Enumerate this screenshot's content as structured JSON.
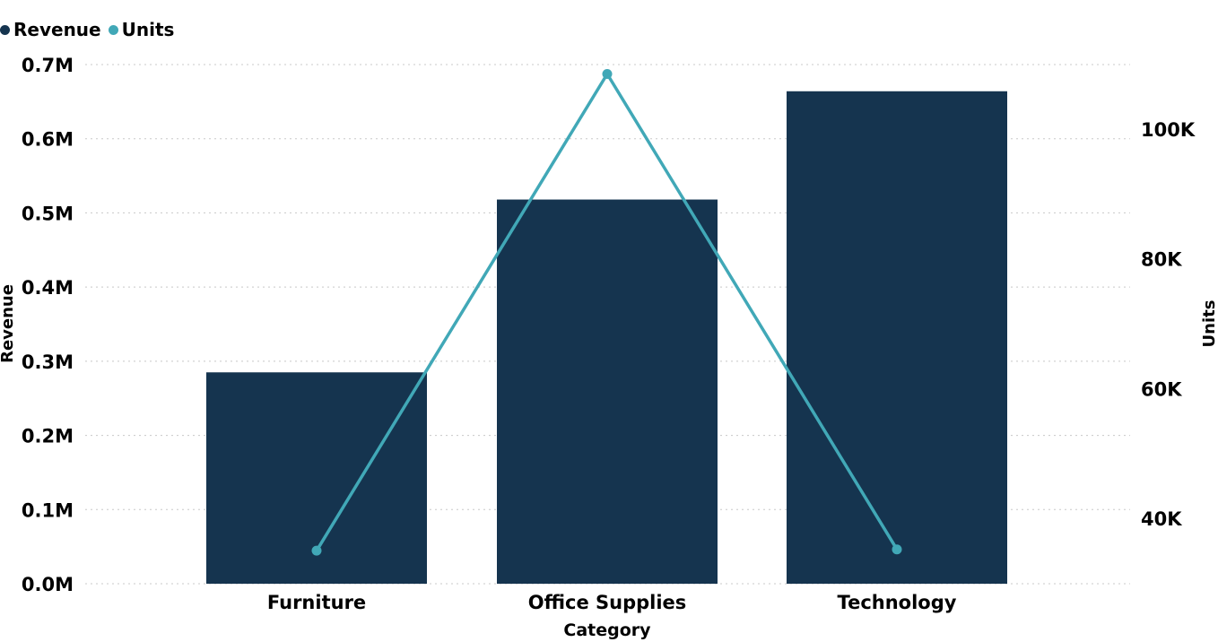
{
  "chart_data": {
    "type": "bar",
    "categories": [
      "Furniture",
      "Office Supplies",
      "Technology"
    ],
    "series": [
      {
        "name": "Revenue",
        "type": "bar",
        "axis": "left",
        "values": [
          285000,
          518000,
          664000
        ]
      },
      {
        "name": "Units",
        "type": "line",
        "axis": "right",
        "values": [
          35000,
          108500,
          35200
        ]
      }
    ],
    "xlabel": "Category",
    "ylabel": "Revenue",
    "y2label": "Units",
    "ylim": [
      0,
      700000
    ],
    "y2lim": [
      30000,
      110000
    ],
    "yticks": [
      {
        "value": 0,
        "label": "0.0M"
      },
      {
        "value": 100000,
        "label": "0.1M"
      },
      {
        "value": 200000,
        "label": "0.2M"
      },
      {
        "value": 300000,
        "label": "0.3M"
      },
      {
        "value": 400000,
        "label": "0.4M"
      },
      {
        "value": 500000,
        "label": "0.5M"
      },
      {
        "value": 600000,
        "label": "0.6M"
      },
      {
        "value": 700000,
        "label": "0.7M"
      }
    ],
    "y2ticks": [
      {
        "value": 40000,
        "label": "40K"
      },
      {
        "value": 60000,
        "label": "60K"
      },
      {
        "value": 80000,
        "label": "80K"
      },
      {
        "value": 100000,
        "label": "100K"
      }
    ],
    "grid": true,
    "legend": "top-left",
    "colors": {
      "Revenue": "#15344f",
      "Units": "#41a8b7"
    }
  }
}
